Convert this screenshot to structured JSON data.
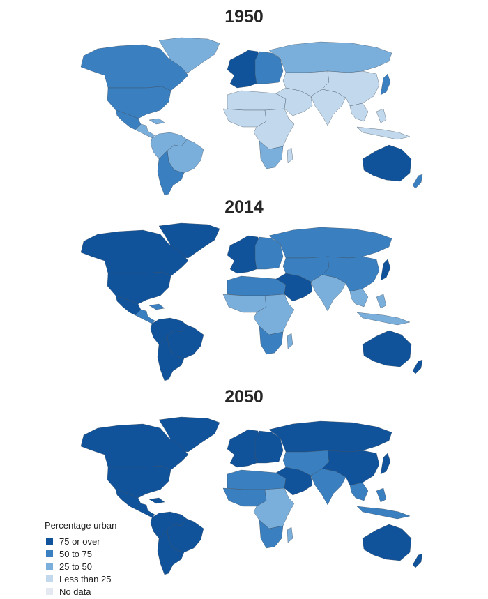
{
  "colors": {
    "c75": "#11539b",
    "c50": "#3a7fc0",
    "c25": "#7aaedb",
    "c0": "#c2d8ec",
    "nodata": "#e4e8f0",
    "border": "#3a4a5a"
  },
  "legend": {
    "title": "Percentage urban",
    "items": [
      {
        "key": "c75",
        "label": "75 or over"
      },
      {
        "key": "c50",
        "label": "50 to 75"
      },
      {
        "key": "c25",
        "label": "25 to 50"
      },
      {
        "key": "c0",
        "label": "Less than 25"
      },
      {
        "key": "nodata",
        "label": "No data"
      }
    ]
  },
  "maps": [
    {
      "year": "1950",
      "regions": {
        "greenland": "c25",
        "canada": "c50",
        "usa": "c50",
        "mexico": "c50",
        "central_america": "c25",
        "caribbean": "c25",
        "north_south_america": "c25",
        "brazil": "c25",
        "southern_cone": "c50",
        "western_europe": "c75",
        "eastern_europe": "c50",
        "russia": "c25",
        "north_africa": "c0",
        "sahel_west_africa": "c0",
        "central_east_africa": "c0",
        "southern_africa": "c25",
        "madagascar": "c0",
        "middle_east": "c0",
        "central_asia": "c0",
        "south_asia": "c0",
        "china": "c0",
        "japan": "c50",
        "southeast_asia": "c0",
        "australia": "c75",
        "new_zealand": "c50"
      }
    },
    {
      "year": "2014",
      "regions": {
        "greenland": "c75",
        "canada": "c75",
        "usa": "c75",
        "mexico": "c75",
        "central_america": "c50",
        "caribbean": "c50",
        "north_south_america": "c75",
        "brazil": "c75",
        "southern_cone": "c75",
        "western_europe": "c75",
        "eastern_europe": "c50",
        "russia": "c50",
        "north_africa": "c50",
        "sahel_west_africa": "c25",
        "central_east_africa": "c25",
        "southern_africa": "c50",
        "madagascar": "c25",
        "middle_east": "c75",
        "central_asia": "c50",
        "south_asia": "c25",
        "china": "c50",
        "japan": "c75",
        "southeast_asia": "c25",
        "australia": "c75",
        "new_zealand": "c75"
      }
    },
    {
      "year": "2050",
      "regions": {
        "greenland": "c75",
        "canada": "c75",
        "usa": "c75",
        "mexico": "c75",
        "central_america": "c75",
        "caribbean": "c75",
        "north_south_america": "c75",
        "brazil": "c75",
        "southern_cone": "c75",
        "western_europe": "c75",
        "eastern_europe": "c75",
        "russia": "c75",
        "north_africa": "c50",
        "sahel_west_africa": "c50",
        "central_east_africa": "c25",
        "southern_africa": "c50",
        "madagascar": "c25",
        "middle_east": "c75",
        "central_asia": "c50",
        "south_asia": "c50",
        "china": "c75",
        "japan": "c75",
        "southeast_asia": "c50",
        "australia": "c75",
        "new_zealand": "c75"
      }
    }
  ]
}
